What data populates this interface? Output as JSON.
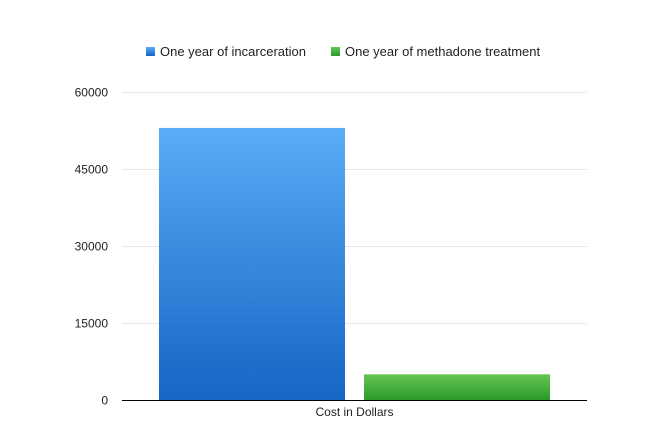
{
  "chart_data": {
    "type": "bar",
    "categories": [
      "Cost in Dollars"
    ],
    "series": [
      {
        "name": "One year of incarceration",
        "values": [
          53000
        ],
        "color_top": "#5aacf6",
        "color_bottom": "#1565c4"
      },
      {
        "name": "One year of methadone treatment",
        "values": [
          5000
        ],
        "color_top": "#66c452",
        "color_bottom": "#2a9a2a"
      }
    ],
    "title": "",
    "xlabel": "",
    "ylabel": "",
    "ylim": [
      0,
      60000
    ],
    "yticks": [
      0,
      15000,
      30000,
      45000,
      60000
    ],
    "grid": true,
    "legend_position": "top"
  }
}
